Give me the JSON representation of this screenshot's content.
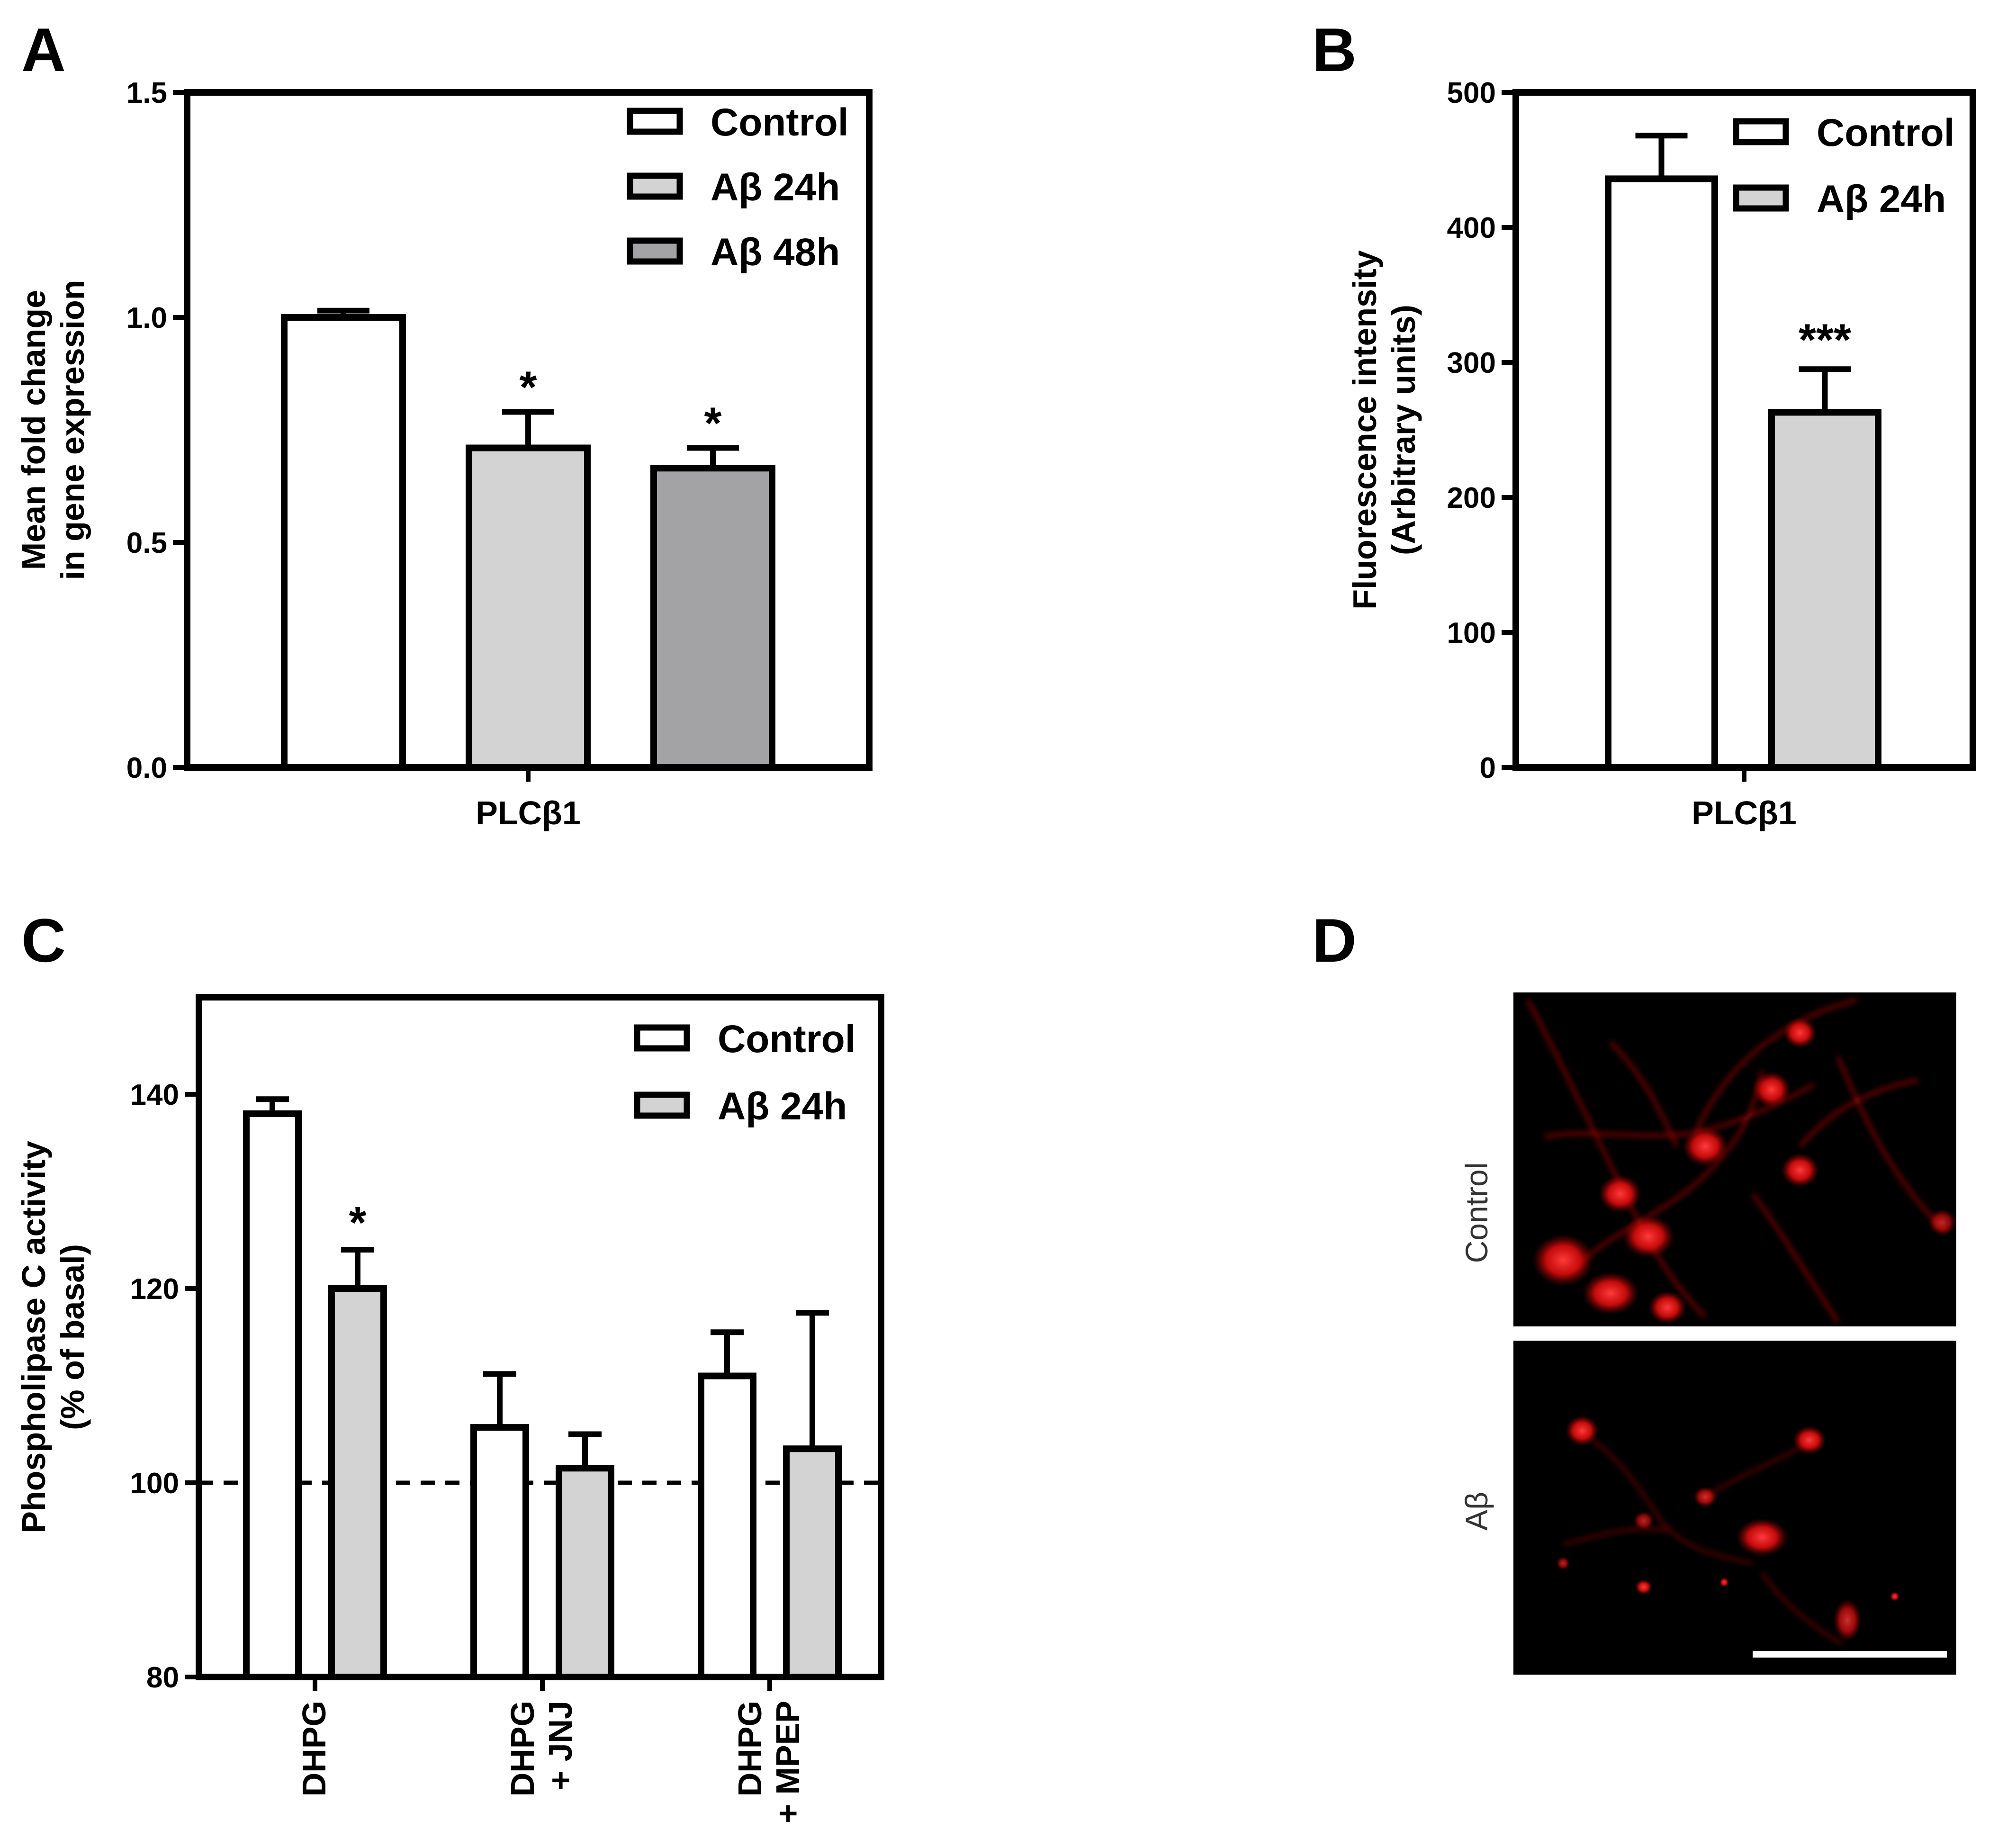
{
  "colors": {
    "control": "#ffffff",
    "abeta_24h": "#d3d3d3",
    "abeta_48h": "#a3a3a6",
    "stroke": "#000000",
    "micrograph_background": "#000000",
    "micrograph_signal": "#ff1a1a",
    "scale_bar": "#ffffff"
  },
  "panels": {
    "A": {
      "letter": "A"
    },
    "B": {
      "letter": "B"
    },
    "C": {
      "letter": "C"
    },
    "D": {
      "letter": "D"
    }
  },
  "chart_data": [
    {
      "panel": "A",
      "type": "bar",
      "ylabel_lines": [
        "Mean fold change",
        "in gene expression"
      ],
      "xlabel": "PLCβ1",
      "ylim": [
        0,
        1.5
      ],
      "yticks": [
        "0.0",
        "0.5",
        "1.0",
        "1.5"
      ],
      "ytick_values": [
        0,
        0.5,
        1.0,
        1.5
      ],
      "grid": false,
      "legend_position": "top-right",
      "series": [
        {
          "name": "Control",
          "color_key": "control",
          "value": 1.0,
          "error": 0.015,
          "annotation": ""
        },
        {
          "name": "Aβ 24h",
          "color_key": "abeta_24h",
          "value": 0.71,
          "error": 0.08,
          "annotation": "*"
        },
        {
          "name": "Aβ 48h",
          "color_key": "abeta_48h",
          "value": 0.665,
          "error": 0.045,
          "annotation": "*"
        }
      ]
    },
    {
      "panel": "B",
      "type": "bar",
      "ylabel_lines": [
        "Fluorescence intensity",
        "(Arbitrary units)"
      ],
      "xlabel": "PLCβ1",
      "ylim": [
        0,
        500
      ],
      "yticks": [
        "0",
        "100",
        "200",
        "300",
        "400",
        "500"
      ],
      "ytick_values": [
        0,
        100,
        200,
        300,
        400,
        500
      ],
      "grid": false,
      "legend_position": "top-right",
      "series": [
        {
          "name": "Control",
          "color_key": "control",
          "value": 436,
          "error": 32,
          "annotation": ""
        },
        {
          "name": "Aβ 24h",
          "color_key": "abeta_24h",
          "value": 263,
          "error": 32,
          "annotation": "***"
        }
      ]
    },
    {
      "panel": "C",
      "type": "bar",
      "ylabel_lines": [
        "Phospholipase C activity",
        "(% of basal)"
      ],
      "ylim": [
        80,
        150
      ],
      "yticks": [
        "80",
        "100",
        "120",
        "140"
      ],
      "ytick_values": [
        80,
        100,
        120,
        140
      ],
      "grid": false,
      "legend_position": "top-right",
      "reference_line": 100,
      "categories": [
        {
          "lines": [
            "DHPG"
          ]
        },
        {
          "lines": [
            "DHPG",
            "+ JNJ"
          ]
        },
        {
          "lines": [
            "DHPG",
            "+ MPEP"
          ]
        }
      ],
      "series": [
        {
          "name": "Control",
          "color_key": "control",
          "values": [
            138,
            105.7,
            111
          ],
          "errors": [
            1.5,
            5.5,
            4.5
          ],
          "annotations": [
            "",
            "",
            ""
          ]
        },
        {
          "name": "Aβ 24h",
          "color_key": "abeta_24h",
          "values": [
            120,
            101.5,
            103.5
          ],
          "errors": [
            4,
            3.5,
            14
          ],
          "annotations": [
            "*",
            "",
            ""
          ]
        }
      ]
    }
  ],
  "micrographs": {
    "control_label": "Control",
    "abeta_label": "Aβ"
  }
}
